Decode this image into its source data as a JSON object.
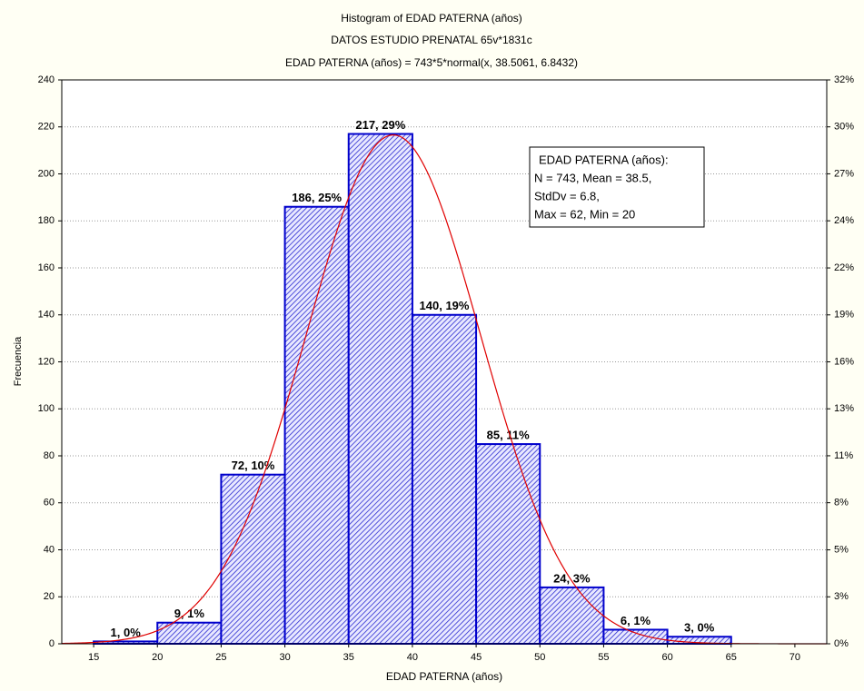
{
  "chart_data": {
    "type": "histogram",
    "title": "Histogram of EDAD PATERNA (años)",
    "subtitle": "DATOS ESTUDIO PRENATAL 65v*1831c",
    "formula": "EDAD PATERNA (años) = 743*5*normal(x, 38.5061, 6.8432)",
    "x_label": "EDAD PATERNA (años)",
    "y_label": "Frecuencia",
    "bins": [
      15,
      20,
      25,
      30,
      35,
      40,
      45,
      50,
      55,
      60,
      65
    ],
    "values": [
      1,
      9,
      72,
      186,
      217,
      140,
      85,
      24,
      6,
      3
    ],
    "value_labels": [
      "1, 0%",
      "9, 1%",
      "72, 10%",
      "186, 25%",
      "217, 29%",
      "140, 19%",
      "85, 11%",
      "24, 3%",
      "6, 1%",
      "3, 0%"
    ],
    "color": "#0000cc",
    "curve_color": "#e00000",
    "fit": {
      "n": 743,
      "width": 5,
      "mean": 38.5061,
      "sd": 6.8432
    },
    "xlim": [
      12.5,
      72.5
    ],
    "xticks": [
      15,
      20,
      25,
      30,
      35,
      40,
      45,
      50,
      55,
      60,
      65,
      70
    ],
    "ylim": [
      0,
      240
    ],
    "yticks": [
      0,
      20,
      40,
      60,
      80,
      100,
      120,
      140,
      160,
      180,
      200,
      220,
      240
    ],
    "y2lim": [
      0,
      32.3
    ],
    "y2ticks": [
      {
        "value": 0,
        "label": "0%"
      },
      {
        "value": 2.69,
        "label": "3%"
      },
      {
        "value": 5.38,
        "label": "5%"
      },
      {
        "value": 8.08,
        "label": "8%"
      },
      {
        "value": 10.77,
        "label": "11%"
      },
      {
        "value": 13.46,
        "label": "13%"
      },
      {
        "value": 16.15,
        "label": "16%"
      },
      {
        "value": 18.84,
        "label": "19%"
      },
      {
        "value": 21.53,
        "label": "22%"
      },
      {
        "value": 24.23,
        "label": "24%"
      },
      {
        "value": 26.92,
        "label": "27%"
      },
      {
        "value": 29.61,
        "label": "30%"
      },
      {
        "value": 32.3,
        "label": "32%"
      }
    ],
    "grid": true,
    "annotation": [
      "EDAD PATERNA (años):",
      "N = 743, Mean = 38.5,",
      "StdDv = 6.8,",
      "Max = 62, Min = 20"
    ]
  }
}
